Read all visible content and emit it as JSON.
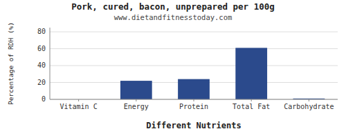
{
  "chart_data": {
    "type": "bar",
    "title": "Pork, cured, bacon, unprepared per 100g",
    "subtitle": "www.dietandfitnesstoday.com",
    "xlabel": "Different Nutrients",
    "ylabel": "Percentage of RDH (%)",
    "categories": [
      "Vitamin C",
      "Energy",
      "Protein",
      "Total Fat",
      "Carbohydrate"
    ],
    "values": [
      0,
      22,
      24,
      61,
      1
    ],
    "color": "#2b4a8c",
    "ylim": [
      0,
      85
    ],
    "yticks": [
      0,
      20,
      40,
      60,
      80
    ],
    "grid": true
  }
}
